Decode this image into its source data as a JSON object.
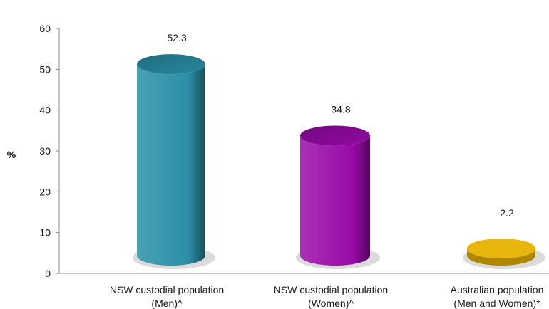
{
  "chart_data": {
    "type": "bar",
    "style": "3d-cylinder",
    "title": "",
    "xlabel": "",
    "ylabel": "%",
    "ylim": [
      0,
      60
    ],
    "yticks": [
      0,
      10,
      20,
      30,
      40,
      50,
      60
    ],
    "grid": false,
    "legend": "none",
    "categories": [
      [
        "NSW custodial population",
        "(Men)^"
      ],
      [
        "NSW custodial population",
        "(Women)^"
      ],
      [
        "Australian population",
        "(Men and Women)*"
      ]
    ],
    "values": [
      52.3,
      34.8,
      2.2
    ],
    "value_labels": [
      "52.3",
      "34.8",
      "2.2"
    ],
    "colors": [
      "#2a8fa6",
      "#990aa8",
      "#e8b200"
    ]
  }
}
